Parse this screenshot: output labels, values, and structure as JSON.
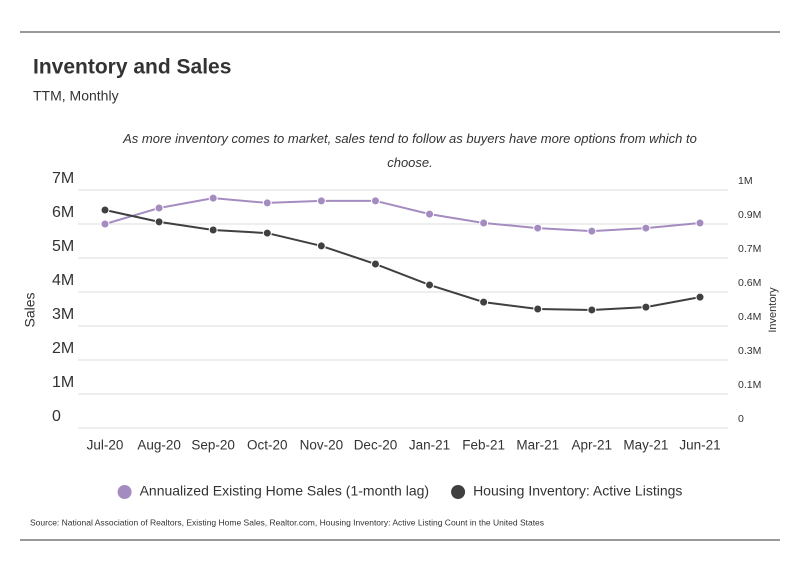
{
  "chart_data": {
    "type": "line",
    "title": "Inventory and Sales",
    "subtitle": "TTM, Monthly",
    "annotation": "As more inventory comes to market, sales tend to follow as buyers have more options from which to choose.",
    "y_label": "Sales",
    "y2_label": "Inventory",
    "source": "Source:  National Association of Realtors, Existing Home Sales,  Realtor.com, Housing Inventory: Active Listing Count in the United States",
    "categories": [
      "Jul-20",
      "Aug-20",
      "Sep-20",
      "Oct-20",
      "Nov-20",
      "Dec-20",
      "Jan-21",
      "Feb-21",
      "Mar-21",
      "Apr-21",
      "May-21",
      "Jun-21"
    ],
    "series": [
      {
        "name": "Annualized Existing Home Sales (1-month lag)",
        "color": "#a58cc0",
        "values": [
          6000000,
          6470000,
          6760000,
          6620000,
          6680000,
          6680000,
          6290000,
          6030000,
          5880000,
          5790000,
          5880000,
          6030000
        ]
      },
      {
        "name": "Housing Inventory: Active Listings",
        "color": "#404040",
        "axis": "y2",
        "values": [
          916000,
          866000,
          832000,
          819000,
          765000,
          689000,
          601000,
          529000,
          500000,
          496000,
          508000,
          550000
        ]
      }
    ],
    "ylim": [
      0,
      7000000
    ],
    "yticks": [
      {
        "value": 0,
        "label": "0"
      },
      {
        "value": 1000000,
        "label": "1M"
      },
      {
        "value": 2000000,
        "label": "2M"
      },
      {
        "value": 3000000,
        "label": "3M"
      },
      {
        "value": 4000000,
        "label": "4M"
      },
      {
        "value": 5000000,
        "label": "5M"
      },
      {
        "value": 6000000,
        "label": "6M"
      },
      {
        "value": 7000000,
        "label": "7M"
      }
    ],
    "y2lim": [
      0,
      1000000
    ],
    "y2ticks": [
      {
        "value": 0,
        "label": "0"
      },
      {
        "value": 142857,
        "label": "0.1M"
      },
      {
        "value": 285714,
        "label": "0.3M"
      },
      {
        "value": 428571,
        "label": "0.4M"
      },
      {
        "value": 571429,
        "label": "0.6M"
      },
      {
        "value": 714286,
        "label": "0.7M"
      },
      {
        "value": 857143,
        "label": "0.9M"
      },
      {
        "value": 1000000,
        "label": "1M"
      }
    ],
    "grid": true,
    "legend": "bottom"
  }
}
